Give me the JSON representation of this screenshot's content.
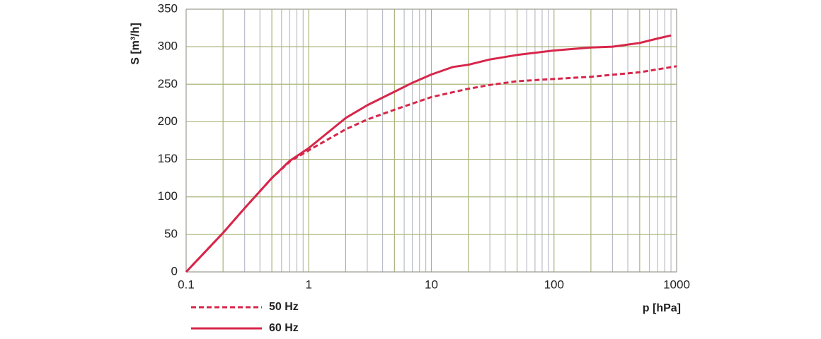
{
  "chart_data": {
    "type": "line",
    "x_label": "p [hPa]",
    "y_label": "S [m³/h]",
    "xscale": "log",
    "xlim": [
      0.1,
      1000
    ],
    "xticks": [
      0.1,
      1,
      10,
      100,
      1000
    ],
    "ylim": [
      0,
      350
    ],
    "yticks": [
      0,
      50,
      100,
      150,
      200,
      250,
      300,
      350
    ],
    "grid": true,
    "legend": "bottom-left",
    "series": [
      {
        "name": "50 Hz",
        "color": "#d7264a",
        "linestyle": "dashed",
        "x": [
          0.1,
          0.2,
          0.3,
          0.5,
          0.7,
          1,
          2,
          3,
          5,
          10,
          20,
          30,
          50,
          100,
          200,
          500,
          1000
        ],
        "values": [
          0,
          52,
          85,
          125,
          147,
          162,
          190,
          203,
          216,
          233,
          244,
          249,
          254,
          257,
          260,
          266,
          274
        ]
      },
      {
        "name": "60 Hz",
        "color": "#d7264a",
        "linestyle": "solid",
        "x": [
          0.1,
          0.2,
          0.3,
          0.5,
          0.7,
          1,
          2,
          3,
          5,
          7,
          10,
          15,
          20,
          30,
          50,
          100,
          200,
          300,
          500,
          700,
          900
        ],
        "values": [
          0,
          52,
          85,
          125,
          148,
          165,
          205,
          222,
          240,
          252,
          263,
          273,
          276,
          283,
          289,
          295,
          299,
          300,
          305,
          311,
          315
        ]
      }
    ]
  }
}
